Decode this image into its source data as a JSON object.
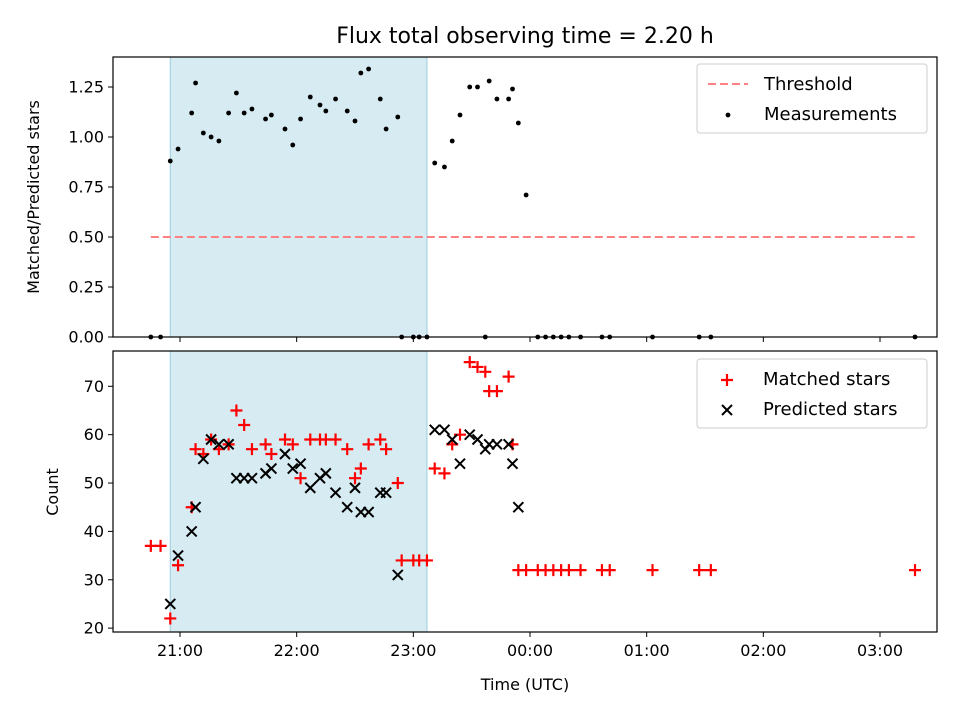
{
  "title": "Flux total observing time = 2.20 h",
  "colors": {
    "threshold": "#ff8080",
    "measurements": "#000000",
    "matched": "#ff0000",
    "predicted": "#000000",
    "shade": "#add8e6"
  },
  "chart_data": [
    {
      "type": "scatter",
      "ylabel": "Matched/Predicted stars",
      "ylim": [
        0,
        1.4
      ],
      "yticks": [
        0.0,
        0.25,
        0.5,
        0.75,
        1.0,
        1.25
      ],
      "ytick_labels": [
        "0.00",
        "0.25",
        "0.50",
        "0.75",
        "1.00",
        "1.25"
      ],
      "shaded_interval": [
        "20:55",
        "23:07"
      ],
      "legend": [
        "Threshold",
        "Measurements"
      ],
      "legend_position": "upper right",
      "threshold": {
        "name": "Threshold",
        "y": 0.5,
        "x": [
          "20:45",
          "03:18"
        ]
      },
      "series": [
        {
          "name": "Measurements",
          "points": [
            [
              "20:45",
              0.0
            ],
            [
              "20:50",
              0.0
            ],
            [
              "20:55",
              0.88
            ],
            [
              "20:59",
              0.94
            ],
            [
              "21:06",
              1.12
            ],
            [
              "21:08",
              1.27
            ],
            [
              "21:12",
              1.02
            ],
            [
              "21:16",
              1.0
            ],
            [
              "21:20",
              0.98
            ],
            [
              "21:25",
              1.12
            ],
            [
              "21:29",
              1.22
            ],
            [
              "21:33",
              1.12
            ],
            [
              "21:37",
              1.14
            ],
            [
              "21:44",
              1.09
            ],
            [
              "21:47",
              1.11
            ],
            [
              "21:54",
              1.04
            ],
            [
              "21:58",
              0.96
            ],
            [
              "22:02",
              1.09
            ],
            [
              "22:07",
              1.2
            ],
            [
              "22:12",
              1.16
            ],
            [
              "22:15",
              1.13
            ],
            [
              "22:20",
              1.19
            ],
            [
              "22:26",
              1.13
            ],
            [
              "22:30",
              1.08
            ],
            [
              "22:33",
              1.32
            ],
            [
              "22:37",
              1.34
            ],
            [
              "22:43",
              1.19
            ],
            [
              "22:46",
              1.04
            ],
            [
              "22:52",
              1.1
            ],
            [
              "22:54",
              0.0
            ],
            [
              "23:00",
              0.0
            ],
            [
              "23:03",
              0.0
            ],
            [
              "23:07",
              0.0
            ],
            [
              "23:11",
              0.87
            ],
            [
              "23:16",
              0.85
            ],
            [
              "23:20",
              0.98
            ],
            [
              "23:24",
              1.11
            ],
            [
              "23:29",
              1.25
            ],
            [
              "23:33",
              1.25
            ],
            [
              "23:37",
              0.0
            ],
            [
              "23:39",
              1.28
            ],
            [
              "23:43",
              1.19
            ],
            [
              "23:49",
              1.19
            ],
            [
              "23:51",
              1.24
            ],
            [
              "23:54",
              1.07
            ],
            [
              "23:58",
              0.71
            ],
            [
              "00:04",
              0.0
            ],
            [
              "00:08",
              0.0
            ],
            [
              "00:12",
              0.0
            ],
            [
              "00:16",
              0.0
            ],
            [
              "00:20",
              0.0
            ],
            [
              "00:26",
              0.0
            ],
            [
              "00:37",
              0.0
            ],
            [
              "00:41",
              0.0
            ],
            [
              "01:03",
              0.0
            ],
            [
              "01:27",
              0.0
            ],
            [
              "01:33",
              0.0
            ],
            [
              "03:18",
              0.0
            ]
          ]
        }
      ]
    },
    {
      "type": "scatter",
      "xlabel": "Time (UTC)",
      "ylabel": "Count",
      "ylim": [
        19.2,
        77.3
      ],
      "yticks": [
        20,
        30,
        40,
        50,
        60,
        70
      ],
      "ytick_labels": [
        "20",
        "30",
        "40",
        "50",
        "60",
        "70"
      ],
      "xtick_labels": [
        "21:00",
        "22:00",
        "23:00",
        "00:00",
        "01:00",
        "02:00",
        "03:00"
      ],
      "shaded_interval": [
        "20:55",
        "23:07"
      ],
      "legend": [
        "Matched stars",
        "Predicted stars"
      ],
      "legend_position": "upper right",
      "series": [
        {
          "name": "Matched stars",
          "marker": "+",
          "points": [
            [
              "20:45",
              37
            ],
            [
              "20:50",
              37
            ],
            [
              "20:55",
              22
            ],
            [
              "20:59",
              33
            ],
            [
              "21:06",
              45
            ],
            [
              "21:08",
              57
            ],
            [
              "21:12",
              56
            ],
            [
              "21:16",
              59
            ],
            [
              "21:20",
              57
            ],
            [
              "21:25",
              58
            ],
            [
              "21:29",
              65
            ],
            [
              "21:33",
              62
            ],
            [
              "21:37",
              57
            ],
            [
              "21:44",
              58
            ],
            [
              "21:47",
              56
            ],
            [
              "21:54",
              59
            ],
            [
              "21:58",
              58
            ],
            [
              "22:02",
              51
            ],
            [
              "22:07",
              59
            ],
            [
              "22:12",
              59
            ],
            [
              "22:15",
              59
            ],
            [
              "22:20",
              59
            ],
            [
              "22:26",
              57
            ],
            [
              "22:30",
              51
            ],
            [
              "22:33",
              53
            ],
            [
              "22:37",
              58
            ],
            [
              "22:43",
              59
            ],
            [
              "22:46",
              57
            ],
            [
              "22:52",
              50
            ],
            [
              "22:54",
              34
            ],
            [
              "23:00",
              34
            ],
            [
              "23:03",
              34
            ],
            [
              "23:07",
              34
            ],
            [
              "23:11",
              53
            ],
            [
              "23:16",
              52
            ],
            [
              "23:20",
              58
            ],
            [
              "23:24",
              60
            ],
            [
              "23:29",
              75
            ],
            [
              "23:33",
              74
            ],
            [
              "23:37",
              73
            ],
            [
              "23:39",
              69
            ],
            [
              "23:43",
              69
            ],
            [
              "23:49",
              72
            ],
            [
              "23:51",
              58
            ],
            [
              "23:54",
              32
            ],
            [
              "23:58",
              32
            ],
            [
              "00:04",
              32
            ],
            [
              "00:08",
              32
            ],
            [
              "00:12",
              32
            ],
            [
              "00:16",
              32
            ],
            [
              "00:20",
              32
            ],
            [
              "00:26",
              32
            ],
            [
              "00:37",
              32
            ],
            [
              "00:41",
              32
            ],
            [
              "01:03",
              32
            ],
            [
              "01:27",
              32
            ],
            [
              "01:33",
              32
            ],
            [
              "03:18",
              32
            ]
          ]
        },
        {
          "name": "Predicted stars",
          "marker": "x",
          "points": [
            [
              "20:55",
              25
            ],
            [
              "20:59",
              35
            ],
            [
              "21:06",
              40
            ],
            [
              "21:08",
              45
            ],
            [
              "21:12",
              55
            ],
            [
              "21:16",
              59
            ],
            [
              "21:20",
              58
            ],
            [
              "21:25",
              58
            ],
            [
              "21:29",
              51
            ],
            [
              "21:33",
              51
            ],
            [
              "21:37",
              51
            ],
            [
              "21:44",
              52
            ],
            [
              "21:47",
              53
            ],
            [
              "21:54",
              56
            ],
            [
              "21:58",
              53
            ],
            [
              "22:02",
              54
            ],
            [
              "22:07",
              49
            ],
            [
              "22:12",
              51
            ],
            [
              "22:15",
              52
            ],
            [
              "22:20",
              48
            ],
            [
              "22:26",
              45
            ],
            [
              "22:30",
              49
            ],
            [
              "22:33",
              44
            ],
            [
              "22:37",
              44
            ],
            [
              "22:43",
              48
            ],
            [
              "22:46",
              48
            ],
            [
              "22:52",
              31
            ],
            [
              "23:11",
              61
            ],
            [
              "23:16",
              61
            ],
            [
              "23:20",
              59
            ],
            [
              "23:24",
              54
            ],
            [
              "23:29",
              60
            ],
            [
              "23:33",
              59
            ],
            [
              "23:37",
              57
            ],
            [
              "23:39",
              58
            ],
            [
              "23:43",
              58
            ],
            [
              "23:49",
              58
            ],
            [
              "23:51",
              54
            ],
            [
              "23:54",
              45
            ]
          ]
        }
      ]
    }
  ]
}
